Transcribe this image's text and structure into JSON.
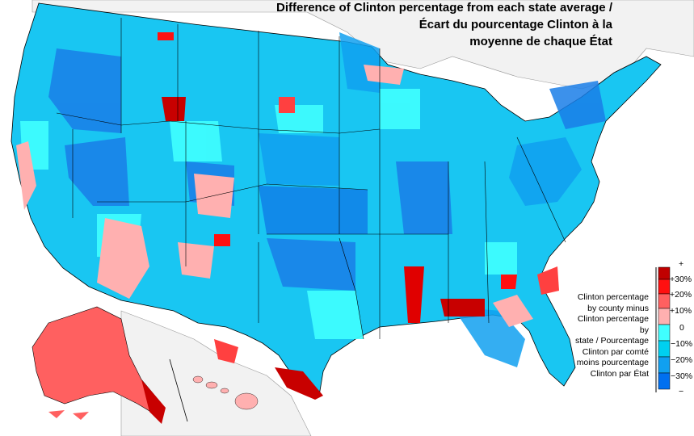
{
  "title": {
    "line1": "Difference of Clinton percentage from each state average /",
    "line2": "Écart du pourcentage Clinton à la",
    "line3": "moyenne de chaque État"
  },
  "legend": {
    "description": [
      "Clinton percentage",
      "by county minus",
      "Clinton percentage by",
      "state / Pourcentage",
      "Clinton par comté",
      "moins pourcentage",
      "Clinton par État"
    ],
    "ticks": [
      "+",
      "+30%",
      "+20%",
      "+10%",
      "0",
      "−10%",
      "−20%",
      "−30%",
      "−"
    ],
    "colors": [
      "#c00000",
      "#ff1010",
      "#ff6060",
      "#ffb0b0",
      "#40ffff",
      "#00d0f0",
      "#10a0f0",
      "#0070f0"
    ]
  },
  "colors": {
    "land_base": "#19c6f2",
    "deep_blue": "#1a7ee8",
    "mid_blue": "#10a0f0",
    "cyan": "#40ffff",
    "pink": "#ffb0b0",
    "red": "#ff5050",
    "dark_red": "#c80000",
    "foreign_land": "#f2f2f2",
    "borders": "#000000"
  }
}
